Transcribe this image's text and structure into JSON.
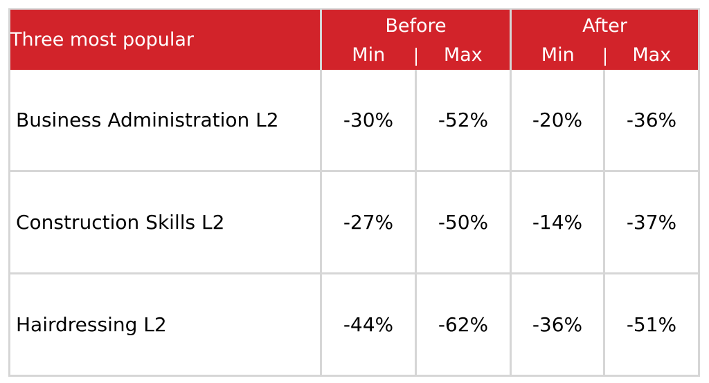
{
  "header": {
    "title": "Three most popular",
    "groups": [
      {
        "label": "Before",
        "sub": [
          "Min",
          "Max"
        ]
      },
      {
        "label": "After",
        "sub": [
          "Min",
          "Max"
        ]
      }
    ]
  },
  "rows": [
    {
      "label": "Business Administration L2",
      "values": [
        "-30%",
        "-52%",
        "-20%",
        "-36%"
      ]
    },
    {
      "label": "Construction Skills L2",
      "values": [
        "-27%",
        "-50%",
        "-14%",
        "-37%"
      ]
    },
    {
      "label": "Hairdressing L2",
      "values": [
        "-44%",
        "-62%",
        "-36%",
        "-51%"
      ]
    }
  ],
  "colors": {
    "header_bg": "#d2232a",
    "header_text": "#ffffff",
    "grid": "#d6d6d6"
  }
}
